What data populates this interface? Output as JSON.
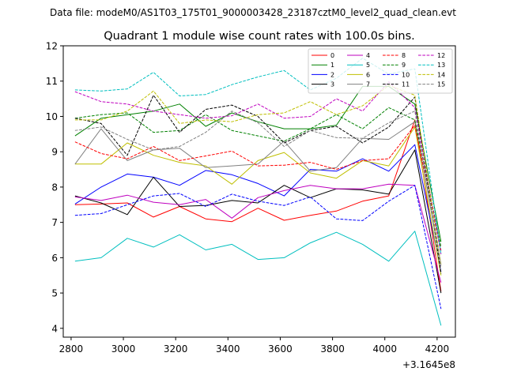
{
  "figure": {
    "supertitle": "Data file: modeM0/AS1T03_175T01_9000003428_23187cztM0_level2_quad_clean.evt"
  },
  "chart_data": {
    "type": "line",
    "title": "Quadrant 1 module wise count rates with 100.0s bins.",
    "xlabel": "",
    "ylabel": "",
    "x_offset_label": "+3.1645e8",
    "xlim": [
      2770,
      4270
    ],
    "ylim": [
      3.75,
      12.0
    ],
    "x_ticks": [
      2800,
      3000,
      3200,
      3400,
      3600,
      3800,
      4000,
      4200
    ],
    "y_ticks": [
      4,
      5,
      6,
      7,
      8,
      9,
      10,
      11,
      12
    ],
    "grid": false,
    "legend_placement": "top-right",
    "x": [
      2815,
      2915,
      3015,
      3115,
      3215,
      3315,
      3415,
      3515,
      3615,
      3715,
      3815,
      3915,
      4015,
      4115,
      4215
    ],
    "series": [
      {
        "name": "0",
        "color": "#ff0000",
        "dash": "solid",
        "values": [
          7.5,
          7.52,
          7.55,
          7.15,
          7.45,
          7.1,
          7.02,
          7.4,
          7.06,
          7.2,
          7.32,
          7.6,
          7.75,
          9.9,
          5.05
        ]
      },
      {
        "name": "1",
        "color": "#008000",
        "dash": "solid",
        "values": [
          9.45,
          9.95,
          10.05,
          10.15,
          10.35,
          9.72,
          10.1,
          9.85,
          9.65,
          9.65,
          9.75,
          10.85,
          10.85,
          10.35,
          6.45
        ]
      },
      {
        "name": "2",
        "color": "#0000ff",
        "dash": "solid",
        "values": [
          7.52,
          8.0,
          8.37,
          8.28,
          8.05,
          8.47,
          8.35,
          8.1,
          7.75,
          8.5,
          8.45,
          8.8,
          8.45,
          9.2,
          5.6
        ]
      },
      {
        "name": "3",
        "color": "#000000",
        "dash": "solid",
        "values": [
          7.75,
          7.55,
          7.22,
          8.28,
          7.45,
          7.48,
          7.62,
          7.55,
          8.05,
          7.7,
          7.95,
          7.92,
          7.8,
          9.05,
          5.0
        ]
      },
      {
        "name": "4",
        "color": "#bf00bf",
        "dash": "solid",
        "values": [
          7.72,
          7.62,
          7.77,
          7.57,
          7.5,
          7.65,
          7.12,
          7.7,
          7.9,
          8.05,
          7.95,
          7.95,
          8.08,
          8.05,
          5.3
        ]
      },
      {
        "name": "5",
        "color": "#00bfbf",
        "dash": "solid",
        "values": [
          5.9,
          6.0,
          6.55,
          6.3,
          6.65,
          6.22,
          6.38,
          5.95,
          6.0,
          6.42,
          6.72,
          6.38,
          5.9,
          6.75,
          4.08
        ]
      },
      {
        "name": "6",
        "color": "#bfbf00",
        "dash": "solid",
        "values": [
          8.65,
          8.65,
          9.25,
          8.9,
          8.7,
          8.6,
          8.08,
          8.75,
          8.98,
          8.4,
          8.25,
          8.75,
          8.6,
          9.7,
          5.5
        ]
      },
      {
        "name": "7",
        "color": "#808080",
        "dash": "solid",
        "values": [
          8.65,
          9.65,
          8.75,
          9.05,
          9.1,
          8.55,
          8.6,
          8.65,
          9.3,
          8.45,
          8.55,
          9.38,
          9.35,
          9.85,
          5.8
        ]
      },
      {
        "name": "8",
        "color": "#ff0000",
        "dash": "dashed",
        "values": [
          9.28,
          8.95,
          8.8,
          9.15,
          8.75,
          8.88,
          9.02,
          8.6,
          8.62,
          8.7,
          8.5,
          8.75,
          8.8,
          9.75,
          6.2
        ]
      },
      {
        "name": "9",
        "color": "#008000",
        "dash": "dashed",
        "values": [
          9.95,
          10.05,
          10.1,
          9.55,
          9.6,
          10.05,
          9.6,
          9.45,
          9.3,
          9.65,
          10.05,
          9.65,
          10.25,
          9.9,
          6.3
        ]
      },
      {
        "name": "10",
        "color": "#0000ff",
        "dash": "dashed",
        "values": [
          7.2,
          7.25,
          7.5,
          7.75,
          7.82,
          7.45,
          7.8,
          7.6,
          7.48,
          7.72,
          7.1,
          7.05,
          7.6,
          8.05,
          4.55
        ]
      },
      {
        "name": "11",
        "color": "#000000",
        "dash": "dashed",
        "values": [
          9.95,
          9.8,
          8.9,
          10.6,
          9.55,
          10.2,
          10.32,
          10.0,
          9.25,
          9.6,
          9.72,
          9.25,
          9.7,
          10.55,
          5.55
        ]
      },
      {
        "name": "12",
        "color": "#bf00bf",
        "dash": "dashed",
        "values": [
          10.7,
          10.42,
          10.35,
          10.15,
          10.05,
          9.95,
          10.02,
          10.35,
          9.95,
          10.0,
          10.5,
          10.15,
          10.98,
          10.25,
          6.1
        ]
      },
      {
        "name": "13",
        "color": "#00bfbf",
        "dash": "dashed",
        "values": [
          10.75,
          10.72,
          10.78,
          11.25,
          10.58,
          10.62,
          10.9,
          11.12,
          11.3,
          10.75,
          11.08,
          11.65,
          11.2,
          11.35,
          6.1
        ]
      },
      {
        "name": "14",
        "color": "#bfbf00",
        "dash": "dashed",
        "values": [
          9.9,
          9.9,
          10.15,
          10.72,
          9.8,
          9.9,
          9.85,
          10.05,
          10.1,
          10.42,
          10.05,
          10.3,
          10.88,
          10.6,
          5.8
        ]
      },
      {
        "name": "15",
        "color": "#808080",
        "dash": "dashed",
        "values": [
          9.6,
          9.7,
          9.35,
          9.05,
          9.15,
          9.55,
          10.15,
          9.82,
          9.15,
          9.6,
          9.4,
          9.38,
          9.82,
          10.15,
          5.75
        ]
      }
    ]
  }
}
